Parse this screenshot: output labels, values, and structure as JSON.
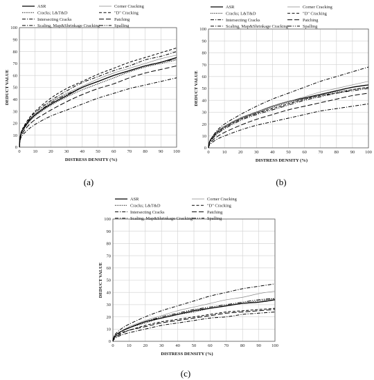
{
  "chart_data": [
    {
      "type": "line",
      "panel_label": "(a)",
      "xlabel": "DISTRESS DENSITY (%)",
      "ylabel": "DEDUCT VALUE",
      "xlim": [
        0,
        100
      ],
      "ylim": [
        0,
        100
      ],
      "xticks": [
        "0",
        "10",
        "20",
        "30",
        "40",
        "50",
        "60",
        "70",
        "80",
        "90",
        "100"
      ],
      "yticks": [
        "0",
        "10",
        "20",
        "30",
        "40",
        "50",
        "60",
        "70",
        "80",
        "90",
        "100"
      ],
      "grid": true,
      "legend_position": "top",
      "x": [
        0,
        1,
        5,
        10,
        20,
        30,
        40,
        50,
        60,
        70,
        80,
        90,
        100
      ],
      "series": [
        {
          "name": "ASR",
          "dash": "solid",
          "width": 1.3,
          "color": "#000000",
          "values": [
            0,
            11,
            20,
            27,
            36,
            43,
            50,
            55,
            60,
            64,
            68,
            71,
            75
          ]
        },
        {
          "name": "Corner Cracking",
          "dash": "solid",
          "width": 0.7,
          "color": "#888888",
          "values": [
            0,
            11,
            21,
            28,
            38,
            45,
            51,
            57,
            62,
            66,
            70,
            74,
            77
          ]
        },
        {
          "name": "Cracks; L&T&D",
          "dash": "dot",
          "width": 1.0,
          "color": "#000000",
          "values": [
            0,
            10,
            19,
            26,
            35,
            42,
            48,
            53,
            58,
            63,
            67,
            70,
            73
          ]
        },
        {
          "name": "\"D\" Cracking",
          "dash": "dash",
          "width": 1.0,
          "color": "#000000",
          "values": [
            0,
            12,
            22,
            30,
            41,
            49,
            55,
            61,
            66,
            71,
            75,
            79,
            83
          ]
        },
        {
          "name": "Intersecting Cracks",
          "dash": "dashdot",
          "width": 1.0,
          "color": "#000000",
          "values": [
            0,
            12,
            21,
            29,
            39,
            47,
            54,
            59,
            64,
            68,
            73,
            76,
            80
          ]
        },
        {
          "name": "Patching",
          "dash": "longdash",
          "width": 1.0,
          "color": "#000000",
          "values": [
            0,
            9,
            17,
            23,
            31,
            38,
            44,
            49,
            53,
            58,
            62,
            65,
            68
          ]
        },
        {
          "name": "Scaling, Map&Shrinkage Cracking",
          "dash": "dashdot",
          "width": 1.0,
          "color": "#000000",
          "values": [
            0,
            8,
            14,
            19,
            26,
            31,
            36,
            41,
            45,
            49,
            52,
            55,
            58
          ]
        },
        {
          "name": "Spalling",
          "dash": "dashdotdot",
          "width": 1.0,
          "color": "#000000",
          "values": [
            0,
            11,
            20,
            27,
            37,
            44,
            50,
            55,
            60,
            64,
            68,
            71,
            74
          ]
        }
      ]
    },
    {
      "type": "line",
      "panel_label": "(b)",
      "xlabel": "DISTRESS DENSITY (%)",
      "ylabel": "DEDUCT VALUE",
      "xlim": [
        0,
        100
      ],
      "ylim": [
        0,
        100
      ],
      "xticks": [
        "0",
        "10",
        "20",
        "30",
        "40",
        "50",
        "60",
        "70",
        "80",
        "90",
        "100"
      ],
      "yticks": [
        "0",
        "10",
        "20",
        "30",
        "40",
        "50",
        "60",
        "70",
        "80",
        "90",
        "100"
      ],
      "grid": true,
      "legend_position": "top",
      "x": [
        0,
        1,
        5,
        10,
        20,
        30,
        40,
        50,
        60,
        70,
        80,
        90,
        100
      ],
      "series": [
        {
          "name": "ASR",
          "dash": "solid",
          "width": 1.3,
          "color": "#000000",
          "values": [
            0,
            6,
            13,
            18,
            25,
            30,
            35,
            39,
            42,
            45,
            48,
            51,
            53
          ]
        },
        {
          "name": "Corner Cracking",
          "dash": "solid",
          "width": 0.7,
          "color": "#888888",
          "values": [
            0,
            6,
            13,
            18,
            25,
            30,
            35,
            39,
            43,
            47,
            50,
            53,
            56
          ]
        },
        {
          "name": "Cracks; L&T&D",
          "dash": "dot",
          "width": 1.0,
          "color": "#000000",
          "values": [
            0,
            6,
            12,
            17,
            24,
            29,
            34,
            38,
            41,
            44,
            47,
            49,
            51
          ]
        },
        {
          "name": "\"D\" Cracking",
          "dash": "dash",
          "width": 1.0,
          "color": "#000000",
          "values": [
            0,
            6,
            12,
            17,
            24,
            29,
            33,
            37,
            41,
            44,
            46,
            49,
            51
          ]
        },
        {
          "name": "Intersecting Cracks",
          "dash": "dashdot",
          "width": 1.0,
          "color": "#000000",
          "values": [
            0,
            6,
            14,
            20,
            28,
            35,
            41,
            46,
            51,
            56,
            60,
            64,
            68
          ]
        },
        {
          "name": "Patching",
          "dash": "longdash",
          "width": 1.0,
          "color": "#000000",
          "values": [
            0,
            4,
            9,
            13,
            19,
            24,
            28,
            32,
            35,
            38,
            41,
            44,
            46
          ]
        },
        {
          "name": "Scaling, Map&Shrinkage Cracking",
          "dash": "dashdot",
          "width": 1.0,
          "color": "#000000",
          "values": [
            0,
            3,
            7,
            10,
            15,
            19,
            22,
            25,
            28,
            31,
            33,
            35,
            37
          ]
        },
        {
          "name": "Spalling",
          "dash": "dashdotdot",
          "width": 1.0,
          "color": "#000000",
          "values": [
            0,
            5,
            11,
            16,
            23,
            28,
            32,
            36,
            40,
            43,
            46,
            48,
            50
          ]
        }
      ]
    },
    {
      "type": "line",
      "panel_label": "(c)",
      "xlabel": "DISTRESS DENSITY (%)",
      "ylabel": "DEDUCT VALUE",
      "xlim": [
        0,
        100
      ],
      "ylim": [
        0,
        100
      ],
      "xticks": [
        "0",
        "10",
        "20",
        "30",
        "40",
        "50",
        "60",
        "70",
        "80",
        "90",
        "100"
      ],
      "yticks": [
        "0",
        "10",
        "20",
        "30",
        "40",
        "50",
        "60",
        "70",
        "80",
        "90",
        "100"
      ],
      "grid": true,
      "legend_position": "top",
      "x": [
        0,
        1,
        5,
        10,
        20,
        30,
        40,
        50,
        60,
        70,
        80,
        90,
        100
      ],
      "series": [
        {
          "name": "ASR",
          "dash": "solid",
          "width": 1.3,
          "color": "#000000",
          "values": [
            0,
            4,
            8,
            11,
            16,
            19,
            22,
            25,
            27,
            29,
            31,
            32,
            34
          ]
        },
        {
          "name": "Corner Cracking",
          "dash": "solid",
          "width": 0.7,
          "color": "#888888",
          "values": [
            0,
            4,
            8,
            12,
            17,
            21,
            25,
            28,
            31,
            34,
            36,
            39,
            41
          ]
        },
        {
          "name": "Cracks; L&T&D",
          "dash": "dot",
          "width": 1.0,
          "color": "#000000",
          "values": [
            0,
            4,
            8,
            11,
            15,
            19,
            22,
            24,
            27,
            29,
            31,
            33,
            35
          ]
        },
        {
          "name": "\"D\" Cracking",
          "dash": "dash",
          "width": 1.0,
          "color": "#000000",
          "values": [
            0,
            3,
            7,
            9,
            13,
            16,
            18,
            20,
            22,
            24,
            25,
            26,
            27
          ]
        },
        {
          "name": "Intersecting Cracks",
          "dash": "dashdot",
          "width": 1.0,
          "color": "#000000",
          "values": [
            0,
            5,
            10,
            14,
            20,
            25,
            29,
            33,
            37,
            40,
            43,
            45,
            47
          ]
        },
        {
          "name": "Patching",
          "dash": "longdash",
          "width": 1.0,
          "color": "#000000",
          "values": [
            0,
            3,
            6,
            9,
            12,
            15,
            17,
            19,
            21,
            23,
            24,
            25,
            26
          ]
        },
        {
          "name": "Scaling, Map&Shrinkage Cracking",
          "dash": "dashdot",
          "width": 1.0,
          "color": "#000000",
          "values": [
            0,
            2,
            5,
            7,
            10,
            13,
            15,
            17,
            19,
            20,
            22,
            23,
            24
          ]
        },
        {
          "name": "Spalling",
          "dash": "dashdotdot",
          "width": 1.0,
          "color": "#000000",
          "values": [
            0,
            4,
            8,
            11,
            16,
            20,
            23,
            26,
            28,
            30,
            32,
            34,
            35
          ]
        }
      ]
    }
  ]
}
